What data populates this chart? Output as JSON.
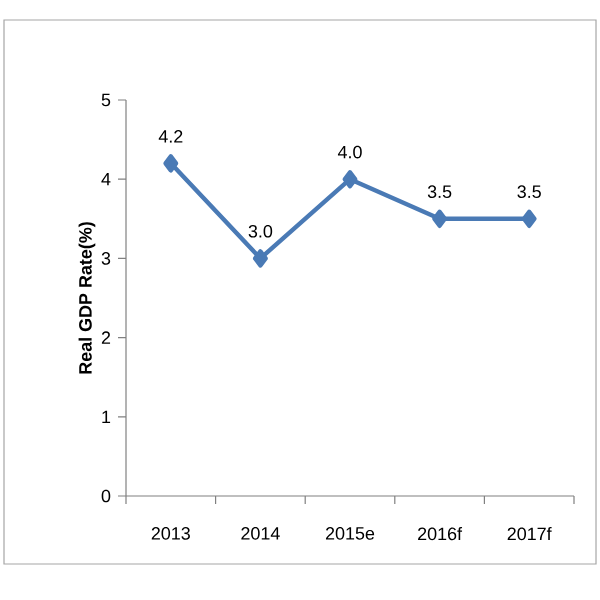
{
  "chart_data": {
    "type": "line",
    "ylabel": "Real  GDP  Rate(%)",
    "categories": [
      "2013",
      "2014",
      "2015e",
      "2016f",
      "2017f"
    ],
    "values": [
      4.2,
      3.0,
      4.0,
      3.5,
      3.5
    ],
    "value_labels": [
      "4.2",
      "3.0",
      "4.0",
      "3.5",
      "3.5"
    ],
    "color": "#4a7ab5",
    "marker": "diamond",
    "line_style": "solid",
    "ylim": [
      0,
      5
    ],
    "yticks": [
      0,
      1,
      2,
      3,
      4,
      5
    ]
  }
}
